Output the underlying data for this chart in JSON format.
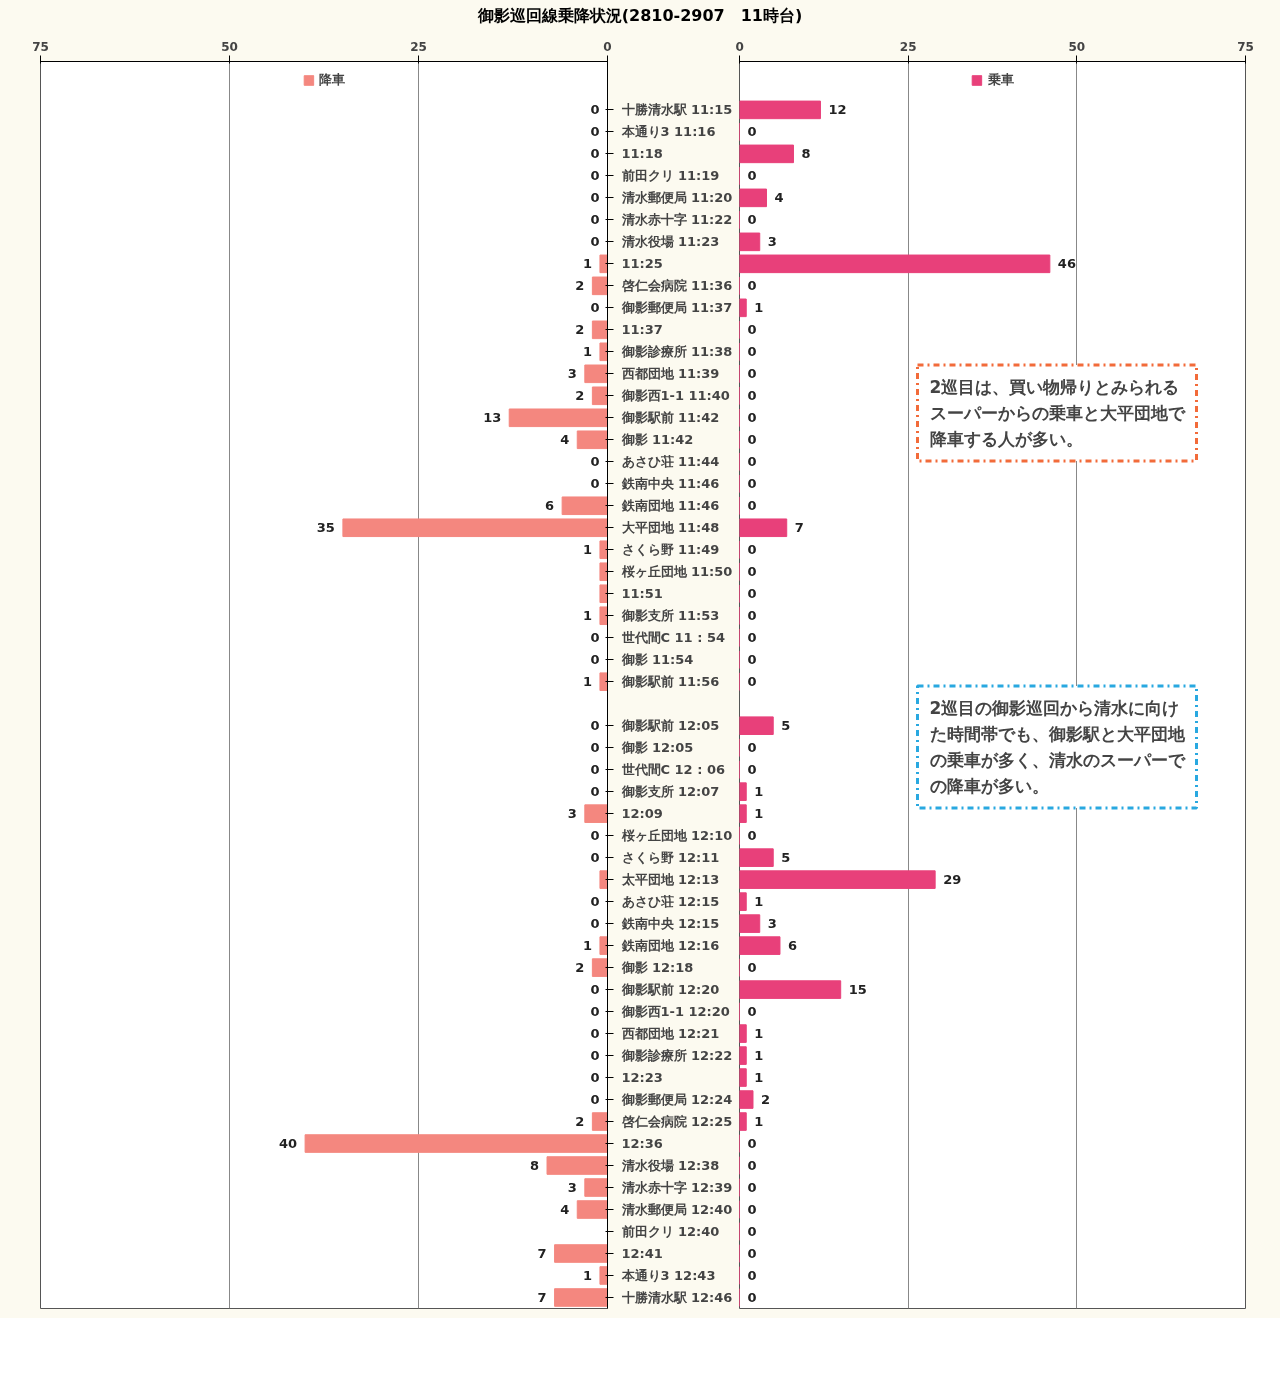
{
  "chart_data": [
    {
      "type": "bar",
      "orientation": "horizontal",
      "title": "御影巡回線乗降状況(2810-2907　11時台)",
      "categories": [
        "十勝清水駅 11:15",
        "本通り3 11:16",
        "11:18",
        "前田クリ 11:19",
        "清水郵便局 11:20",
        "清水赤十字 11:22",
        "清水役場 11:23",
        "11:25",
        "啓仁会病院 11:36",
        "御影郵便局 11:37",
        "11:37",
        "御影診療所 11:38",
        "西都団地 11:39",
        "御影西1-1 11:40",
        "御影駅前 11:42",
        "御影 11:42",
        "あさひ荘 11:44",
        "鉄南中央 11:46",
        "鉄南団地 11:46",
        "大平団地 11:48",
        "さくら野 11:49",
        "桜ヶ丘団地 11:50",
        "11:51",
        "御影支所 11:53",
        "世代間C 11 : 54",
        "御影 11:54",
        "御影駅前 11:56",
        null,
        "御影駅前 12:05",
        "御影 12:05",
        "世代間C 12 : 06",
        "御影支所 12:07",
        "12:09",
        "桜ヶ丘団地 12:10",
        "さくら野 12:11",
        "太平団地 12:13",
        "あさひ荘 12:15",
        "鉄南中央 12:15",
        "鉄南団地 12:16",
        "御影 12:18",
        "御影駅前 12:20",
        "御影西1-1 12:20",
        "西都団地 12:21",
        "御影診療所 12:22",
        "12:23",
        "御影郵便局 12:24",
        "啓仁会病院 12:25",
        "12:36",
        "清水役場 12:38",
        "清水赤十字 12:39",
        "清水郵便局 12:40",
        "前田クリ 12:40",
        "12:41",
        "本通り3 12:43",
        "十勝清水駅 12:46"
      ],
      "series": [
        {
          "name": "降車",
          "color": "#f4877f",
          "values": [
            0,
            0,
            0,
            0,
            0,
            0,
            0,
            1,
            2,
            0,
            2,
            1,
            3,
            2,
            13,
            4,
            0,
            0,
            6,
            35,
            1,
            1,
            1,
            1,
            0,
            0,
            1,
            null,
            0,
            0,
            0,
            0,
            3,
            0,
            0,
            1,
            0,
            0,
            1,
            2,
            0,
            0,
            0,
            0,
            0,
            0,
            2,
            40,
            8,
            3,
            4,
            0,
            7,
            1,
            7
          ],
          "value_labels": [
            "0",
            "0",
            "0",
            "0",
            "0",
            "0",
            "0",
            "1",
            "2",
            "0",
            "2",
            "1",
            "3",
            "2",
            "13",
            "4",
            "0",
            "0",
            "6",
            "35",
            "1",
            null,
            null,
            "1",
            "0",
            "0",
            "1",
            null,
            "0",
            "0",
            "0",
            "0",
            "3",
            "0",
            "0",
            null,
            "0",
            "0",
            "1",
            "2",
            "0",
            "0",
            "0",
            "0",
            "0",
            "0",
            "2",
            "40",
            "8",
            "3",
            "4",
            null,
            "7",
            "1",
            "7"
          ]
        }
      ],
      "xlim": [
        75,
        0
      ],
      "xticks": [
        75,
        50,
        25,
        0
      ],
      "grid": "x",
      "legend": "top"
    },
    {
      "type": "bar",
      "orientation": "horizontal",
      "categories": [
        "十勝清水駅 11:15",
        "本通り3 11:16",
        "11:18",
        "前田クリ 11:19",
        "清水郵便局 11:20",
        "清水赤十字 11:22",
        "清水役場 11:23",
        "11:25",
        "啓仁会病院 11:36",
        "御影郵便局 11:37",
        "11:37",
        "御影診療所 11:38",
        "西都団地 11:39",
        "御影西1-1 11:40",
        "御影駅前 11:42",
        "御影 11:42",
        "あさひ荘 11:44",
        "鉄南中央 11:46",
        "鉄南団地 11:46",
        "大平団地 11:48",
        "さくら野 11:49",
        "桜ヶ丘団地 11:50",
        "11:51",
        "御影支所 11:53",
        "世代間C 11 : 54",
        "御影 11:54",
        "御影駅前 11:56",
        null,
        "御影駅前 12:05",
        "御影 12:05",
        "世代間C 12 : 06",
        "御影支所 12:07",
        "12:09",
        "桜ヶ丘団地 12:10",
        "さくら野 12:11",
        "太平団地 12:13",
        "あさひ荘 12:15",
        "鉄南中央 12:15",
        "鉄南団地 12:16",
        "御影 12:18",
        "御影駅前 12:20",
        "御影西1-1 12:20",
        "西都団地 12:21",
        "御影診療所 12:22",
        "12:23",
        "御影郵便局 12:24",
        "啓仁会病院 12:25",
        "12:36",
        "清水役場 12:38",
        "清水赤十字 12:39",
        "清水郵便局 12:40",
        "前田クリ 12:40",
        "12:41",
        "本通り3 12:43",
        "十勝清水駅 12:46"
      ],
      "series": [
        {
          "name": "乗車",
          "color": "#e8407a",
          "values": [
            12,
            0,
            8,
            0,
            4,
            0,
            3,
            46,
            0,
            1,
            0,
            0,
            0,
            0,
            0,
            0,
            0,
            0,
            0,
            7,
            0,
            0,
            0,
            0,
            0,
            0,
            0,
            null,
            5,
            0,
            0,
            1,
            1,
            0,
            5,
            29,
            1,
            3,
            6,
            0,
            15,
            0,
            1,
            1,
            1,
            2,
            1,
            0,
            0,
            0,
            0,
            0,
            0,
            0,
            0
          ]
        }
      ],
      "data_labels": true,
      "xlim": [
        0,
        75
      ],
      "xticks": [
        0,
        25,
        50,
        75
      ],
      "grid": "x",
      "legend": "top",
      "tick_labels": "x",
      "annotations": [
        "2巡目は、買い物帰りとみられるスーパーからの乗車と大平団地で降車する人が多い。",
        "2巡目の御影巡回から清水に向けた時間帯でも、御影駅と大平団地の乗車が多く、清水のスーパーでの降車が多い。"
      ]
    }
  ]
}
